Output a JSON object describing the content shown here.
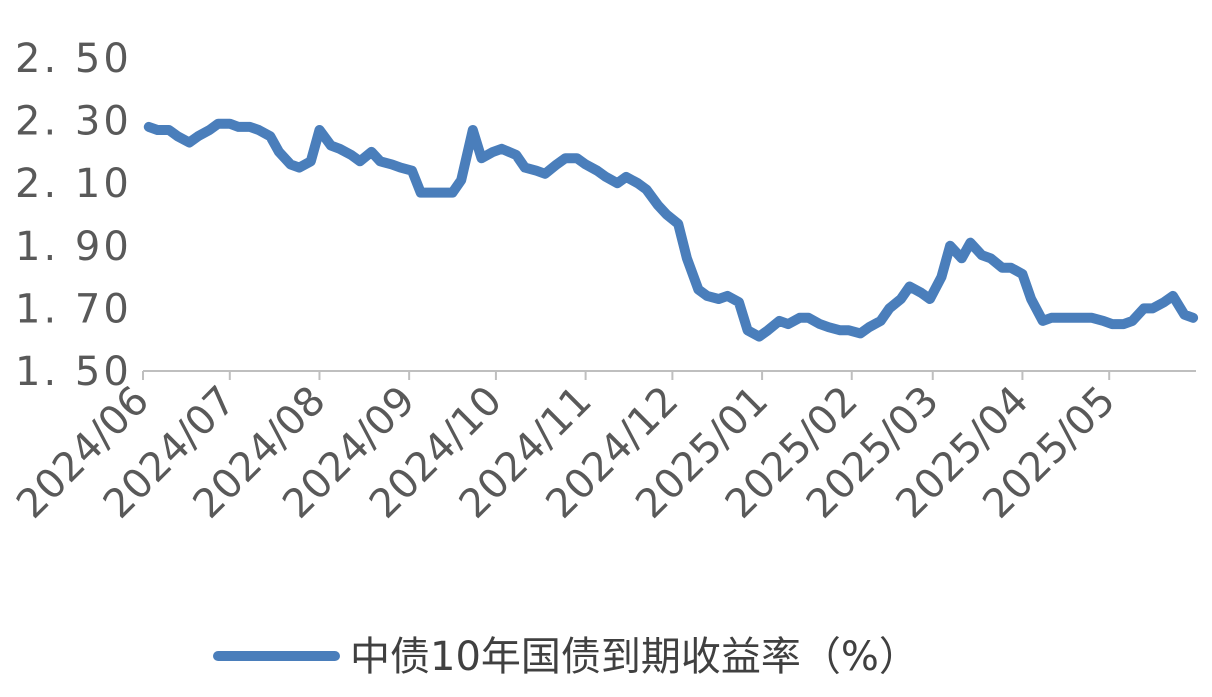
{
  "chart_data": {
    "type": "line",
    "title": "",
    "xlabel": "",
    "ylabel": "",
    "y_tick_labels": [
      "2. 50",
      "2. 30",
      "2. 10",
      "1. 90",
      "1. 70",
      "1. 50"
    ],
    "y_tick_values": [
      2.5,
      2.3,
      2.1,
      1.9,
      1.7,
      1.5
    ],
    "ylim": [
      1.5,
      2.5
    ],
    "x_tick_labels": [
      "2024/06",
      "2024/07",
      "2024/08",
      "2024/09",
      "2024/10",
      "2024/11",
      "2024/12",
      "2025/01",
      "2025/02",
      "2025/03",
      "2025/04",
      "2025/05"
    ],
    "xlim": [
      "2024-06-01",
      "2025-05-31"
    ],
    "grid": false,
    "legend_position": "bottom",
    "series_color": "#4a7ebb",
    "series": [
      {
        "name": "中债10年国债到期收益率（%）",
        "x": [
          "2024-06-03",
          "2024-06-06",
          "2024-06-10",
          "2024-06-13",
          "2024-06-17",
          "2024-06-20",
          "2024-06-24",
          "2024-06-27",
          "2024-07-01",
          "2024-07-04",
          "2024-07-08",
          "2024-07-11",
          "2024-07-15",
          "2024-07-18",
          "2024-07-22",
          "2024-07-25",
          "2024-07-29",
          "2024-08-01",
          "2024-08-05",
          "2024-08-08",
          "2024-08-12",
          "2024-08-15",
          "2024-08-19",
          "2024-08-22",
          "2024-08-26",
          "2024-08-29",
          "2024-09-02",
          "2024-09-05",
          "2024-09-09",
          "2024-09-12",
          "2024-09-16",
          "2024-09-19",
          "2024-09-23",
          "2024-09-26",
          "2024-09-30",
          "2024-10-03",
          "2024-10-08",
          "2024-10-11",
          "2024-10-15",
          "2024-10-18",
          "2024-10-22",
          "2024-10-25",
          "2024-10-29",
          "2024-11-01",
          "2024-11-05",
          "2024-11-08",
          "2024-11-12",
          "2024-11-15",
          "2024-11-19",
          "2024-11-22",
          "2024-11-26",
          "2024-11-29",
          "2024-12-03",
          "2024-12-06",
          "2024-12-10",
          "2024-12-13",
          "2024-12-17",
          "2024-12-20",
          "2024-12-24",
          "2024-12-27",
          "2024-12-31",
          "2025-01-03",
          "2025-01-07",
          "2025-01-10",
          "2025-01-14",
          "2025-01-17",
          "2025-01-21",
          "2025-01-24",
          "2025-01-28",
          "2025-01-31",
          "2025-02-04",
          "2025-02-07",
          "2025-02-11",
          "2025-02-14",
          "2025-02-18",
          "2025-02-21",
          "2025-02-25",
          "2025-02-28",
          "2025-03-04",
          "2025-03-07",
          "2025-03-11",
          "2025-03-14",
          "2025-03-18",
          "2025-03-21",
          "2025-03-25",
          "2025-03-28",
          "2025-04-01",
          "2025-04-04",
          "2025-04-08",
          "2025-04-11",
          "2025-04-15",
          "2025-04-18",
          "2025-04-22",
          "2025-04-25",
          "2025-04-29",
          "2025-05-02",
          "2025-05-06",
          "2025-05-09",
          "2025-05-13",
          "2025-05-16",
          "2025-05-20",
          "2025-05-23",
          "2025-05-27",
          "2025-05-30"
        ],
        "values": [
          2.28,
          2.27,
          2.27,
          2.25,
          2.23,
          2.25,
          2.27,
          2.29,
          2.29,
          2.28,
          2.28,
          2.27,
          2.25,
          2.2,
          2.16,
          2.15,
          2.17,
          2.27,
          2.22,
          2.21,
          2.19,
          2.17,
          2.2,
          2.17,
          2.16,
          2.15,
          2.14,
          2.07,
          2.07,
          2.07,
          2.07,
          2.11,
          2.27,
          2.18,
          2.2,
          2.21,
          2.19,
          2.15,
          2.14,
          2.13,
          2.16,
          2.18,
          2.18,
          2.16,
          2.14,
          2.12,
          2.1,
          2.12,
          2.1,
          2.08,
          2.03,
          2.0,
          1.97,
          1.86,
          1.76,
          1.74,
          1.73,
          1.74,
          1.72,
          1.63,
          1.61,
          1.63,
          1.66,
          1.65,
          1.67,
          1.67,
          1.65,
          1.64,
          1.63,
          1.63,
          1.62,
          1.64,
          1.66,
          1.7,
          1.73,
          1.77,
          1.75,
          1.73,
          1.8,
          1.9,
          1.86,
          1.91,
          1.87,
          1.86,
          1.83,
          1.83,
          1.81,
          1.73,
          1.66,
          1.67,
          1.67,
          1.67,
          1.67,
          1.67,
          1.66,
          1.65,
          1.65,
          1.66,
          1.7,
          1.7,
          1.72,
          1.74,
          1.68,
          1.67
        ]
      }
    ]
  }
}
